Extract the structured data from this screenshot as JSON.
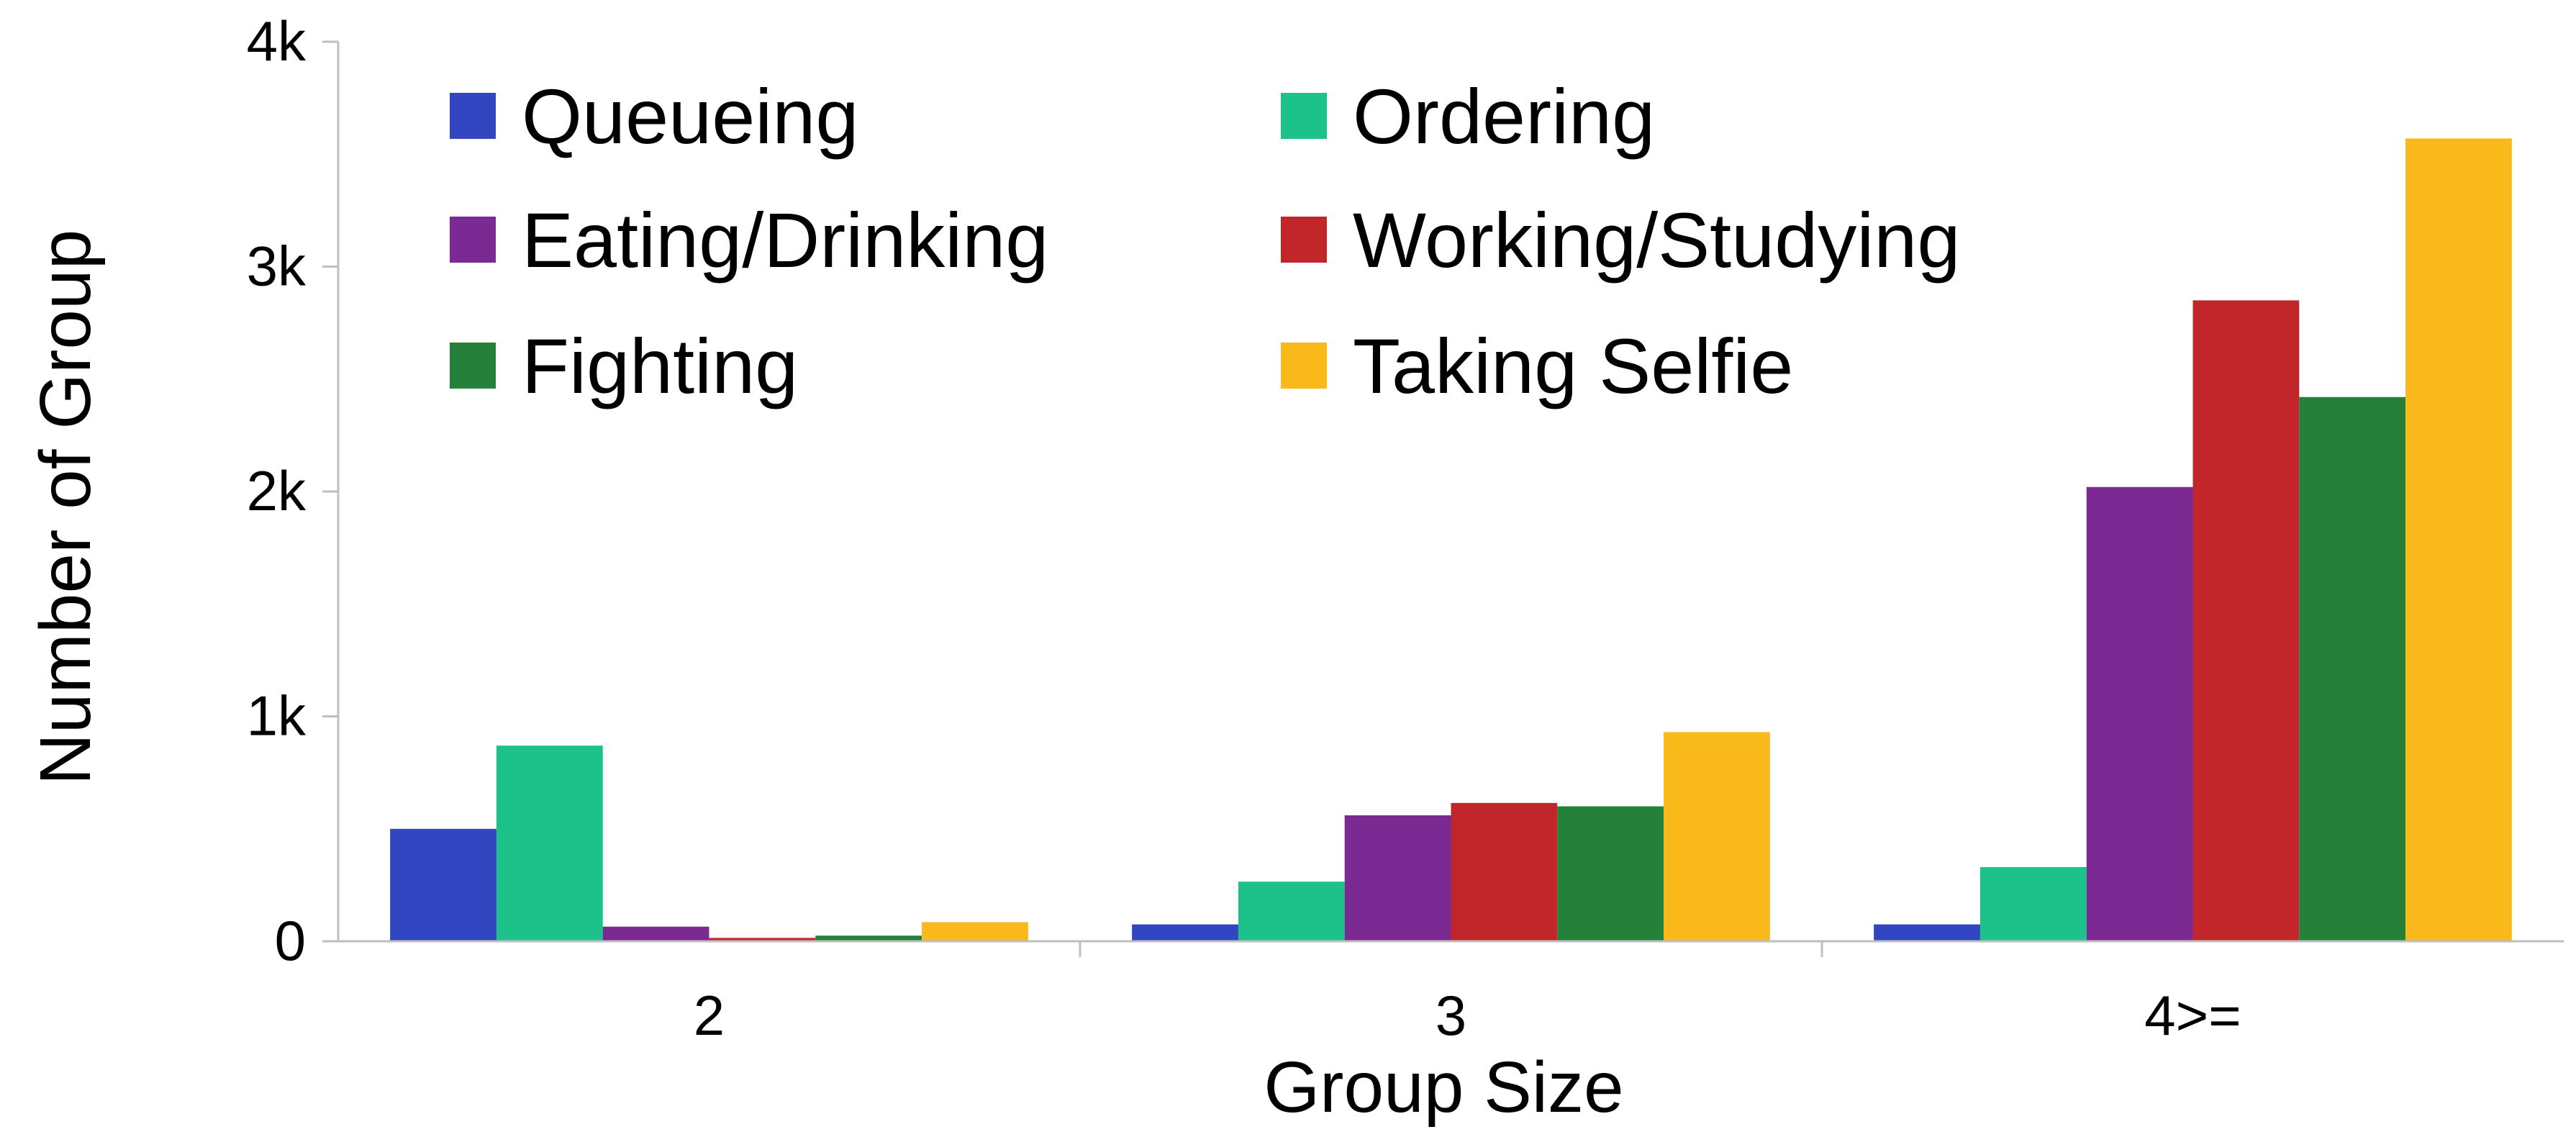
{
  "chart_data": {
    "type": "bar",
    "title": "",
    "xlabel": "Group Size",
    "ylabel": "Number of Group",
    "categories": [
      "2",
      "3",
      "4>="
    ],
    "ylim": [
      0,
      4000
    ],
    "yticks": [
      0,
      1000,
      2000,
      3000,
      4000
    ],
    "ytick_labels": [
      "0",
      "1k",
      "2k",
      "3k",
      "4k"
    ],
    "grid": false,
    "legend": "top-left, 2 columns",
    "series": [
      {
        "name": "Queueing",
        "color": "#3146c0",
        "values": [
          500,
          75,
          75
        ]
      },
      {
        "name": "Ordering",
        "color": "#1cc28a",
        "values": [
          870,
          265,
          330
        ]
      },
      {
        "name": "Eating/Drinking",
        "color": "#7a2a92",
        "values": [
          65,
          560,
          2020
        ]
      },
      {
        "name": "Working/Studying",
        "color": "#c0262a",
        "values": [
          15,
          615,
          2850
        ]
      },
      {
        "name": "Fighting",
        "color": "#258139",
        "values": [
          25,
          600,
          2420
        ]
      },
      {
        "name": "Taking Selfie",
        "color": "#f9b91a",
        "values": [
          85,
          930,
          3570
        ]
      }
    ]
  }
}
